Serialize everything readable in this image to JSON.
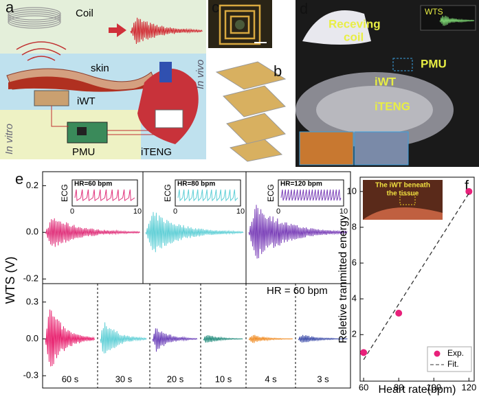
{
  "panel_labels": [
    "a",
    "b",
    "c",
    "d",
    "e",
    "f"
  ],
  "panel_a": {
    "coil": "Coil",
    "skin": "skin",
    "iwt": "iWT",
    "in_vitro": "In vitro",
    "in_vivo": "In vivo",
    "pmu": "PMU",
    "iteng": "iTENG"
  },
  "panel_d": {
    "receiving_coil": [
      "Receving",
      "coil"
    ],
    "wts": "WTS",
    "pmu": "PMU",
    "iwt": "iWT",
    "iteng": "iTENG"
  },
  "chart_data": [
    {
      "type": "line",
      "y_label": "WTS (V)",
      "annotation": "HR = 60 bpm",
      "upper": {
        "ylim": [
          -0.22,
          0.26
        ],
        "yticks": [
          0.2,
          {
            "value": 0,
            "label": "0.0"
          },
          -0.2
        ],
        "segments": [
          {
            "color": "#e0307a"
          },
          {
            "color": "#5fcfd6"
          },
          {
            "color": "#7a3fb8"
          }
        ],
        "insets": [
          {
            "y_label": "ECG",
            "title": "HR=60 bpm",
            "xlim": [
              0,
              10
            ],
            "xticks": [
              0,
              10
            ],
            "color": "#e0307a"
          },
          {
            "y_label": "ECG",
            "title": "HR=80 bpm",
            "xlim": [
              0,
              10
            ],
            "xticks": [
              0,
              10
            ],
            "color": "#5fcfd6"
          },
          {
            "y_label": "ECG",
            "title": "HR=120 bpm",
            "xlim": [
              0,
              10
            ],
            "xticks": [
              0,
              10
            ],
            "color": "#7a3fb8"
          }
        ]
      },
      "lower": {
        "ylim": [
          -0.4,
          0.45
        ],
        "yticks": [
          0.3,
          {
            "value": 0,
            "label": "0.0"
          },
          -0.3
        ],
        "segments": [
          {
            "label": "60 s",
            "color": "#e8206e"
          },
          {
            "label": "30 s",
            "color": "#5fcfd6"
          },
          {
            "label": "20 s",
            "color": "#6a3fb8"
          },
          {
            "label": "10 s",
            "color": "#1f8a7a"
          },
          {
            "label": "4 s",
            "color": "#f08a20"
          },
          {
            "label": "3 s",
            "color": "#3a4aa8"
          }
        ]
      }
    },
    {
      "type": "scatter",
      "x_label": "Heart rate(bpm)",
      "y_label": "Reletive tranmitted energy",
      "series": [
        {
          "name": "Exp.",
          "color": "#e8207a",
          "x": [
            60,
            80,
            120
          ],
          "values": [
            1.0,
            3.2,
            10.0
          ]
        },
        {
          "name": "Fit.",
          "color": "#333333",
          "x": [
            60,
            120
          ],
          "values": [
            0.6,
            9.9
          ],
          "style": "dashed"
        }
      ],
      "xlim": [
        58,
        123
      ],
      "ylim": [
        -0.6,
        10.8
      ],
      "xticks": [
        60,
        80,
        100,
        120
      ],
      "yticks": [
        2,
        4,
        6,
        8,
        10
      ],
      "legend": "lower right",
      "inset_text": [
        "The iWT beneath",
        "the tissue"
      ]
    }
  ]
}
